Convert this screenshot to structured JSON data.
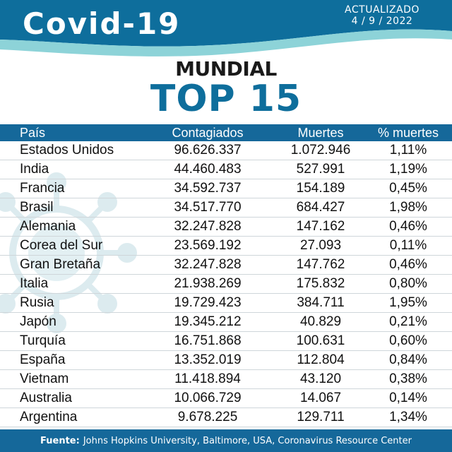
{
  "header": {
    "brand": "Covid-19",
    "updated_label": "ACTUALIZADO",
    "updated_date": "4 / 9 / 2022",
    "colors": {
      "dark_band": "#0e6e9c",
      "light_band": "#8dd3d8"
    }
  },
  "heading": {
    "subtitle": "MUNDIAL",
    "title": "TOP 15"
  },
  "table": {
    "columns": [
      "País",
      "Contagiados",
      "Muertes",
      "% muertes"
    ],
    "rows": [
      {
        "country": "Estados Unidos",
        "infected": "96.626.337",
        "deaths": "1.072.946",
        "pct": "1,11%"
      },
      {
        "country": "India",
        "infected": "44.460.483",
        "deaths": "527.991",
        "pct": "1,19%"
      },
      {
        "country": "Francia",
        "infected": "34.592.737",
        "deaths": "154.189",
        "pct": "0,45%"
      },
      {
        "country": "Brasil",
        "infected": "34.517.770",
        "deaths": "684.427",
        "pct": "1,98%"
      },
      {
        "country": "Alemania",
        "infected": "32.247.828",
        "deaths": "147.162",
        "pct": "0,46%"
      },
      {
        "country": "Corea del Sur",
        "infected": "23.569.192",
        "deaths": "27.093",
        "pct": "0,11%"
      },
      {
        "country": "Gran Bretaña",
        "infected": "32.247.828",
        "deaths": "147.762",
        "pct": "0,46%"
      },
      {
        "country": "Italia",
        "infected": "21.938.269",
        "deaths": "175.832",
        "pct": "0,80%"
      },
      {
        "country": "Rusia",
        "infected": "19.729.423",
        "deaths": "384.711",
        "pct": "1,95%"
      },
      {
        "country": "Japón",
        "infected": "19.345.212",
        "deaths": "40.829",
        "pct": "0,21%"
      },
      {
        "country": "Turquía",
        "infected": "16.751.868",
        "deaths": "100.631",
        "pct": "0,60%"
      },
      {
        "country": "España",
        "infected": "13.352.019",
        "deaths": "112.804",
        "pct": "0,84%"
      },
      {
        "country": "Vietnam",
        "infected": "11.418.894",
        "deaths": "43.120",
        "pct": "0,38%"
      },
      {
        "country": "Australia",
        "infected": "10.066.729",
        "deaths": "14.067",
        "pct": "0,14%"
      },
      {
        "country": "Argentina",
        "infected": "9.678.225",
        "deaths": "129.711",
        "pct": "1,34%"
      }
    ]
  },
  "footer": {
    "label": "Fuente:",
    "text": "Johns Hopkins University, Baltimore, USA, Coronavirus Resource Center"
  },
  "icons": [
    "virus-watermark-icon"
  ]
}
